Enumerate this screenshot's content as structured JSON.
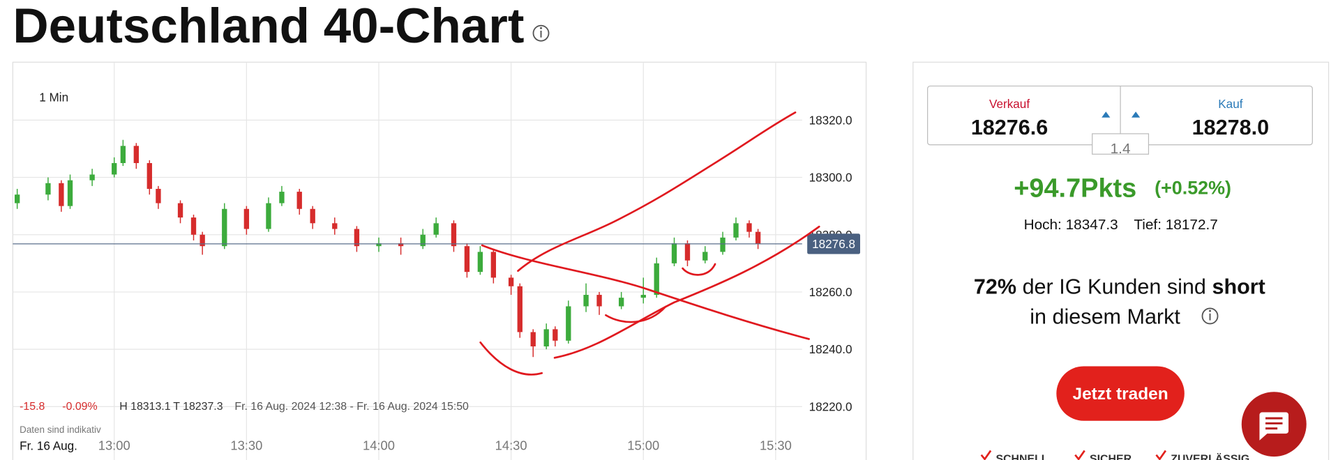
{
  "header": {
    "title": "Deutschland 40-Chart"
  },
  "chart_data": {
    "type": "candlestick",
    "interval": "1 Min",
    "x": [
      "12:38",
      "12:45",
      "12:48",
      "12:50",
      "12:55",
      "13:00",
      "13:02",
      "13:05",
      "13:08",
      "13:10",
      "13:15",
      "13:18",
      "13:20",
      "13:25",
      "13:30",
      "13:35",
      "13:38",
      "13:42",
      "13:45",
      "13:50",
      "13:55",
      "14:00",
      "14:05",
      "14:10",
      "14:13",
      "14:17",
      "14:20",
      "14:23",
      "14:26",
      "14:30",
      "14:32",
      "14:35",
      "14:38",
      "14:40",
      "14:43",
      "14:47",
      "14:50",
      "14:55",
      "15:00",
      "15:03",
      "15:07",
      "15:10",
      "15:14",
      "15:18",
      "15:21",
      "15:24",
      "15:26"
    ],
    "open": [
      18291,
      18294,
      18298,
      18290,
      18299,
      18301,
      18305,
      18311,
      18305,
      18296,
      18291,
      18286,
      18280,
      18276,
      18289,
      18282,
      18291,
      18295,
      18289,
      18284,
      18282,
      18276,
      18277,
      18276,
      18280,
      18284,
      18276,
      18267,
      18274,
      18265,
      18262,
      18246,
      18241,
      18247,
      18243,
      18255,
      18259,
      18255,
      18258,
      18259,
      18270,
      18277,
      18271,
      18274,
      18279,
      18284,
      18281
    ],
    "high": [
      18296,
      18300,
      18299,
      18301,
      18303,
      18307,
      18313.1,
      18312,
      18306,
      18297,
      18292,
      18287,
      18281,
      18291,
      18290,
      18293,
      18297,
      18296,
      18290,
      18286,
      18283,
      18279,
      18279,
      18282,
      18286,
      18285,
      18277,
      18276,
      18275,
      18266,
      18263,
      18247,
      18249,
      18248,
      18257,
      18263,
      18260,
      18260,
      18265,
      18272,
      18279,
      18278,
      18276,
      18281,
      18286,
      18285,
      18282
    ],
    "low": [
      18289,
      18292,
      18288,
      18289,
      18297,
      18300,
      18304,
      18303,
      18294,
      18289,
      18284,
      18278,
      18273,
      18275,
      18280,
      18281,
      18290,
      18287,
      18282,
      18280,
      18274,
      18274,
      18273,
      18275,
      18279,
      18274,
      18265,
      18266,
      18263,
      18259,
      18244,
      18237.3,
      18240,
      18241,
      18242,
      18253,
      18252,
      18254,
      18256,
      18258,
      18269,
      18269,
      18270,
      18273,
      18278,
      18279,
      18275
    ],
    "close": [
      18294,
      18298,
      18290,
      18299,
      18301,
      18305,
      18311,
      18305,
      18296,
      18291,
      18286,
      18280,
      18276,
      18289,
      18282,
      18291,
      18295,
      18289,
      18284,
      18282,
      18276,
      18277,
      18276,
      18280,
      18284,
      18276,
      18267,
      18274,
      18265,
      18262,
      18246,
      18241,
      18247,
      18243,
      18255,
      18259,
      18255,
      18258,
      18259,
      18270,
      18277,
      18271,
      18274,
      18279,
      18284,
      18281,
      18276.8
    ],
    "up_color": "#3cab3c",
    "down_color": "#d62c2c",
    "xlim": [
      "12:37",
      "15:36"
    ],
    "xticks": [
      "13:00",
      "13:30",
      "14:00",
      "14:30",
      "15:00",
      "15:30"
    ],
    "ylim": [
      18210,
      18340
    ],
    "yticks": [
      {
        "value": 18220,
        "label": "18220.0"
      },
      {
        "value": 18240,
        "label": "18240.0"
      },
      {
        "value": 18260,
        "label": "18260.0"
      },
      {
        "value": 18280,
        "label": "18280.0"
      },
      {
        "value": 18300,
        "label": "18300.0"
      },
      {
        "value": 18320,
        "label": "18320.0"
      }
    ],
    "grid": true,
    "last_price": 18276.8,
    "date_label": "Fr. 16 Aug.",
    "stats": {
      "change": "-15.8",
      "change_pct": "-0.09%",
      "high": "H 18313.1",
      "low": "T 18237.3",
      "range": "Fr. 16 Aug. 2024 12:38 - Fr. 16 Aug. 2024 15:50"
    },
    "disclaimer": "Daten sind indikativ"
  },
  "quote": {
    "sell_label": "Verkauf",
    "sell": "18276.6",
    "buy_label": "Kauf",
    "buy": "18278.0",
    "spread": "1.4",
    "change": "+94.7Pkts",
    "change_pct": "(+0.52%)",
    "high": "Hoch: 18347.3",
    "low": "Tief: 18172.7"
  },
  "sentiment": {
    "percent": "72%",
    "text1": "der IG Kunden sind",
    "position": "short",
    "text2": "in diesem Markt"
  },
  "cta": {
    "button": "Jetzt traden",
    "features": [
      "SCHNELL",
      "SICHER",
      "ZUVERLÄSSIG"
    ]
  }
}
